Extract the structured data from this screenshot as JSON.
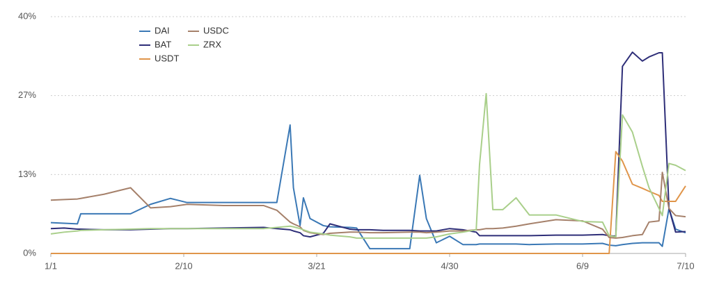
{
  "chart_data": {
    "type": "line",
    "x": [
      0,
      4,
      8,
      9,
      16,
      24,
      30,
      36,
      41,
      52,
      64,
      68,
      72,
      73,
      75,
      76,
      78,
      82,
      84,
      90,
      92,
      96,
      100,
      108,
      111,
      113,
      116,
      120,
      124,
      128,
      129,
      131,
      133,
      136,
      140,
      144,
      152,
      160,
      166,
      168,
      170,
      172,
      175,
      178,
      180,
      183,
      184,
      186,
      188,
      191
    ],
    "series": [
      {
        "name": "DAI",
        "color": "#3a78b5",
        "values": [
          5.2,
          5.1,
          5.0,
          6.7,
          6.7,
          6.7,
          8.3,
          9.3,
          8.6,
          8.6,
          8.6,
          8.6,
          21.7,
          11.1,
          4.7,
          9.4,
          5.9,
          4.7,
          4.5,
          4.4,
          4.3,
          0.8,
          0.8,
          0.8,
          13.2,
          5.9,
          1.8,
          2.9,
          1.5,
          1.5,
          1.6,
          1.6,
          1.6,
          1.6,
          1.6,
          1.5,
          1.6,
          1.6,
          1.7,
          1.4,
          1.3,
          1.5,
          1.7,
          1.8,
          1.8,
          1.8,
          1.2,
          7.6,
          4.1,
          3.5
        ]
      },
      {
        "name": "BAT",
        "color": "#2e2e78",
        "values": [
          4.2,
          4.3,
          4.1,
          4.1,
          4.0,
          4.0,
          4.1,
          4.2,
          4.2,
          4.3,
          4.4,
          4.2,
          4.0,
          3.8,
          3.5,
          3.0,
          2.8,
          3.4,
          5.0,
          4.1,
          4.0,
          4.0,
          3.9,
          3.9,
          3.8,
          3.8,
          3.8,
          4.2,
          4.0,
          3.6,
          3.0,
          3.0,
          3.0,
          3.0,
          3.0,
          3.0,
          3.1,
          3.1,
          3.2,
          3.0,
          2.9,
          31.6,
          34,
          32.5,
          33.2,
          33.9,
          33.9,
          7.6,
          3.6,
          3.7
        ]
      },
      {
        "name": "USDT",
        "color": "#e0954a",
        "values": [
          0,
          0,
          0,
          0,
          0,
          0,
          0,
          0,
          0,
          0,
          0,
          0,
          0,
          0,
          0,
          0,
          0,
          0,
          0,
          0,
          0,
          0,
          0,
          0,
          0,
          0,
          0,
          0,
          0,
          0,
          0,
          0,
          0,
          0,
          0,
          0,
          0,
          0,
          0,
          0,
          17.2,
          15.6,
          11.7,
          11.0,
          10.5,
          9.8,
          8.8,
          8.8,
          8.8,
          11.4
        ]
      },
      {
        "name": "USDC",
        "color": "#a5806a",
        "values": [
          9.0,
          9.1,
          9.2,
          9.3,
          10.0,
          11.1,
          7.7,
          7.9,
          8.3,
          8.1,
          8.1,
          7.3,
          5.3,
          5.0,
          4.5,
          3.9,
          3.5,
          3.2,
          3.4,
          3.6,
          3.6,
          3.5,
          3.5,
          3.6,
          3.6,
          3.5,
          3.6,
          3.8,
          3.8,
          4.0,
          4.0,
          4.2,
          4.2,
          4.3,
          4.6,
          5.0,
          5.7,
          5.5,
          4.1,
          2.7,
          2.6,
          2.7,
          3.0,
          3.2,
          5.3,
          5.5,
          13.7,
          7.6,
          6.4,
          6.2
        ]
      },
      {
        "name": "ZRX",
        "color": "#a9cf8a",
        "values": [
          3.3,
          3.6,
          3.8,
          3.9,
          4.0,
          4.1,
          4.2,
          4.2,
          4.2,
          4.2,
          4.2,
          4.4,
          4.6,
          4.5,
          4.2,
          4.0,
          3.6,
          3.3,
          3.1,
          2.8,
          2.6,
          2.6,
          2.6,
          2.6,
          2.6,
          2.6,
          2.8,
          3.3,
          3.6,
          4.0,
          15.0,
          27.0,
          7.4,
          7.4,
          9.4,
          6.5,
          6.5,
          5.4,
          5.3,
          3.0,
          2.8,
          23.4,
          20.5,
          14.7,
          11.1,
          7.6,
          6.4,
          15.2,
          14.9,
          14.0
        ]
      }
    ],
    "xlim": [
      0,
      191
    ],
    "xticks": [
      {
        "value": 0,
        "label": "1/1"
      },
      {
        "value": 40,
        "label": "2/10"
      },
      {
        "value": 80,
        "label": "3/21"
      },
      {
        "value": 120,
        "label": "4/30"
      },
      {
        "value": 160,
        "label": "6/9"
      },
      {
        "value": 191,
        "label": "7/10"
      }
    ],
    "ylim": [
      0,
      40
    ],
    "yticks": [
      {
        "value": 0,
        "label": "0%"
      },
      {
        "value": 13.33,
        "label": "13%"
      },
      {
        "value": 26.67,
        "label": "27%"
      },
      {
        "value": 40,
        "label": "40%"
      }
    ],
    "grid": true,
    "legend": "top-left"
  }
}
